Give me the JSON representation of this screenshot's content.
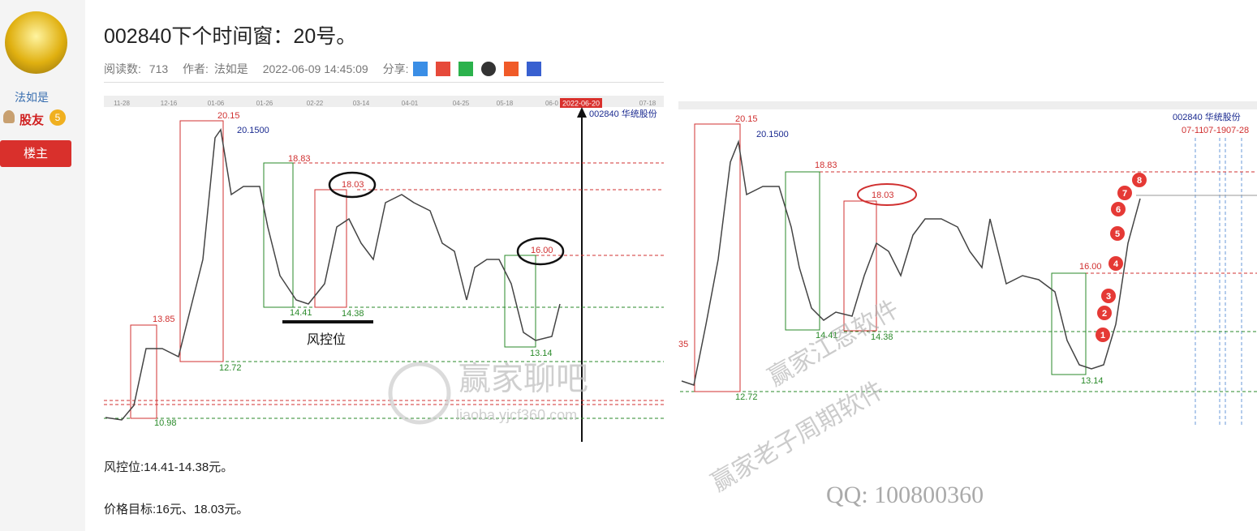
{
  "sidebar": {
    "username": "法如是",
    "rank": "股友",
    "level": "5",
    "badge": "楼主"
  },
  "post": {
    "title": "002840下个时间窗：20号。",
    "meta": {
      "reads_label": "阅读数:",
      "reads": "713",
      "author_label": "作者:",
      "author": "法如是",
      "datetime": "2022-06-09 14:45:09",
      "share_label": "分享:"
    },
    "paragraphs": [
      "风控位:14.41-14.38元。",
      "价格目标:16元、18.03元。"
    ]
  },
  "images": [
    {
      "dates": [
        "11-28",
        "12-16",
        "01-06",
        "01-26",
        "02-22",
        "03-14",
        "04-01",
        "04-25",
        "05-18",
        "06-0",
        "2022-06-20",
        "07-18"
      ],
      "stock": "002840 华统股份",
      "high": "20.15",
      "high_exact": "20.1500",
      "level_1883": "18.83",
      "level_1803": "18.03",
      "level_1600": "16.00",
      "level_1385": "13.85",
      "level_1441": "14.41",
      "level_1438": "14.38",
      "level_1272": "12.72",
      "level_1098": "10.98",
      "level_1314": "13.14",
      "risk_label": "风控位",
      "watermark": "赢家聊吧",
      "watermark_url": "liaoba.yjcf360.com"
    },
    {
      "stock": "002840 华统股份",
      "dates": [
        "07-11",
        "07-19",
        "07-28"
      ],
      "high": "20.15",
      "high_exact": "20.1500",
      "level_1883": "18.83",
      "level_1803": "18.03",
      "level_1600": "16.00",
      "level_1441": "14.41",
      "level_1438": "14.38",
      "level_1272": "12.72",
      "level_1314": "13.14",
      "edge_label": "35",
      "steps": [
        "1",
        "2",
        "3",
        "4",
        "5",
        "6",
        "7",
        "8"
      ],
      "watermarks": [
        "赢家江恩软件",
        "赢家老子周期软件",
        "QQ: 100800360"
      ]
    }
  ]
}
